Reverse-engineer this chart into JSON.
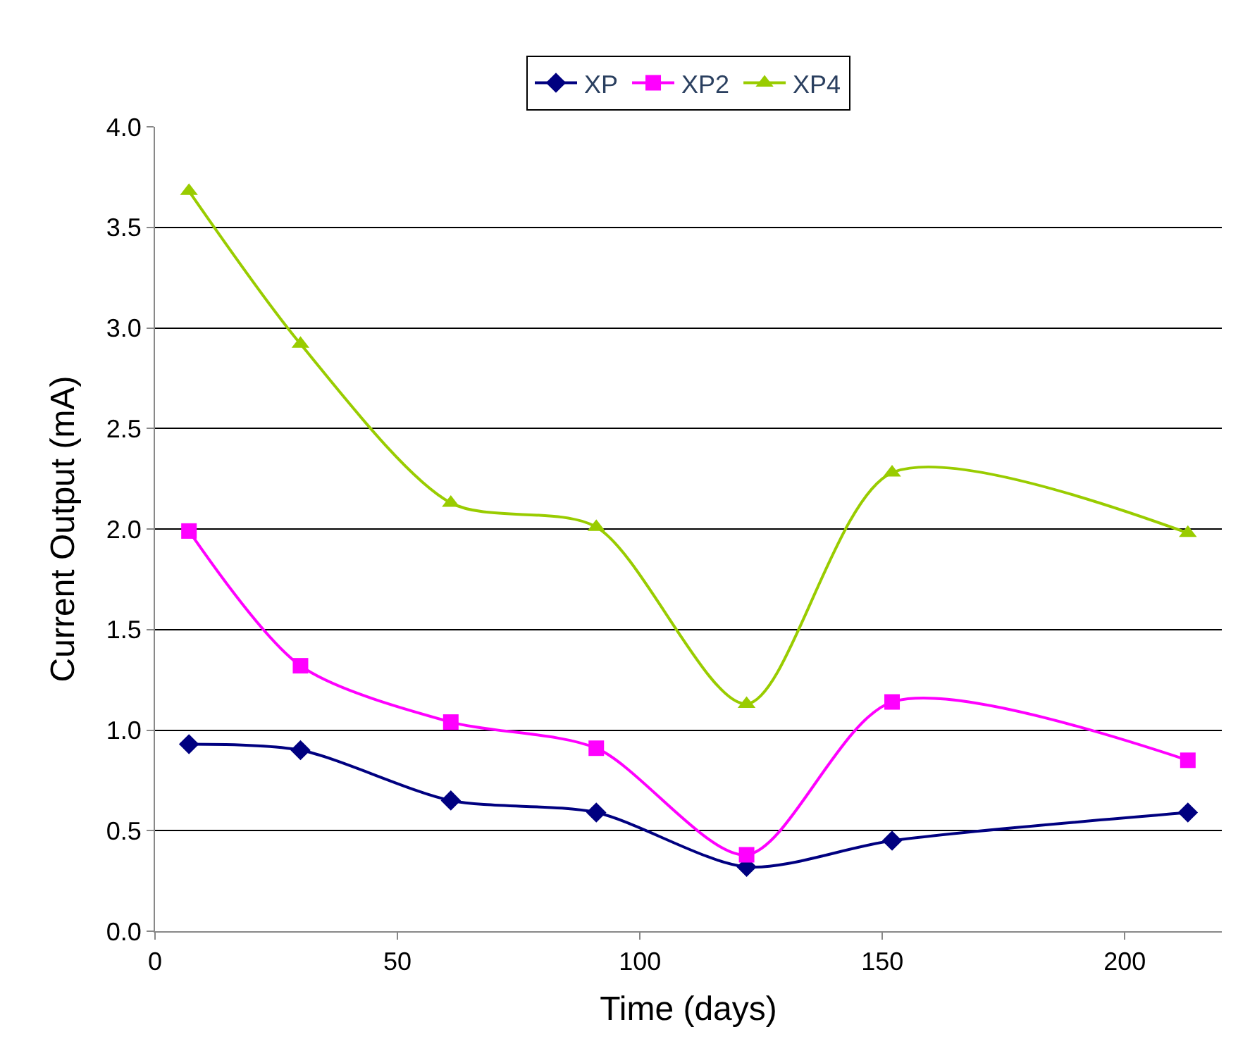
{
  "chart_data": {
    "type": "line",
    "xlabel": "Time (days)",
    "ylabel": "Current Output (mA)",
    "x": [
      7,
      30,
      61,
      91,
      122,
      152,
      213
    ],
    "series": [
      {
        "name": "XP",
        "color": "#000080",
        "marker": "diamond",
        "values": [
          0.93,
          0.9,
          0.65,
          0.59,
          0.32,
          0.45,
          0.59
        ]
      },
      {
        "name": "XP2",
        "color": "#ff00ff",
        "marker": "square",
        "values": [
          1.99,
          1.32,
          1.04,
          0.91,
          0.38,
          1.14,
          0.85
        ]
      },
      {
        "name": "XP4",
        "color": "#99cc00",
        "marker": "triangle",
        "values": [
          3.68,
          2.92,
          2.13,
          2.01,
          1.13,
          2.28,
          1.98
        ]
      }
    ],
    "xlim": [
      0,
      220
    ],
    "xticks": [
      0,
      50,
      100,
      150,
      200
    ],
    "ylim": [
      0,
      4
    ],
    "yticks": [
      {
        "value": 0,
        "label": "0.0"
      },
      {
        "value": 0.5,
        "label": "0.5"
      },
      {
        "value": 1,
        "label": "1.0"
      },
      {
        "value": 1.5,
        "label": "1.5"
      },
      {
        "value": 2,
        "label": "2.0"
      },
      {
        "value": 2.5,
        "label": "2.5"
      },
      {
        "value": 3,
        "label": "3.0"
      },
      {
        "value": 3.5,
        "label": "3.5"
      },
      {
        "value": 4,
        "label": "4.0"
      }
    ],
    "grid": "y",
    "legend": "top",
    "line_style": "solid"
  }
}
